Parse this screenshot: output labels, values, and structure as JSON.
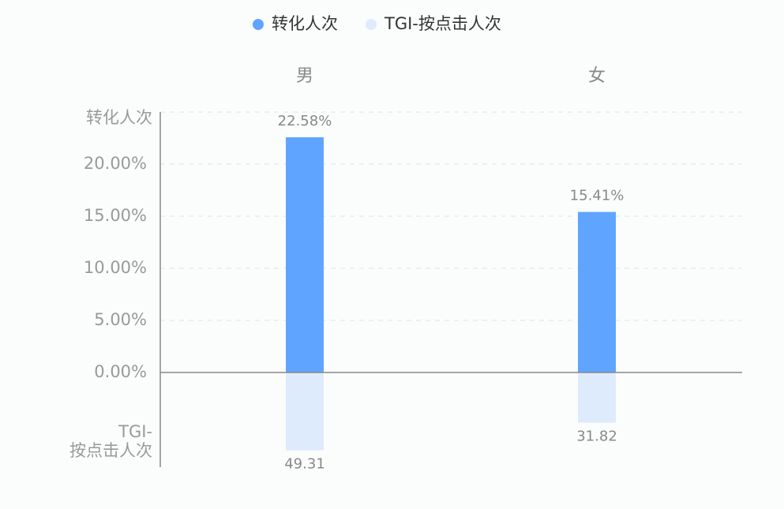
{
  "chart_data": {
    "type": "mirrored-bar",
    "categories": [
      "男",
      "女"
    ],
    "y_label": "转化人次",
    "y2_label_lines": [
      "TGI-",
      "按点击人次"
    ],
    "series": [
      {
        "name": "转化人次",
        "color": "#5fa5ff",
        "values": [
          22.58,
          15.41
        ],
        "value_labels": [
          "22.58%",
          "15.41%"
        ]
      },
      {
        "name": "TGI-按点击人次",
        "color": "#deebfd",
        "axis": "y2",
        "values": [
          49.31,
          31.82
        ]
      }
    ],
    "ylim": [
      0,
      25
    ],
    "yticks": [
      {
        "value": 0,
        "label": "0.00%"
      },
      {
        "value": 5,
        "label": "5.00%"
      },
      {
        "value": 10,
        "label": "10.00%"
      },
      {
        "value": 15,
        "label": "15.00%"
      },
      {
        "value": 20,
        "label": "20.00%"
      }
    ],
    "y2lim": [
      0,
      60
    ],
    "grid": true,
    "legend": "top"
  }
}
